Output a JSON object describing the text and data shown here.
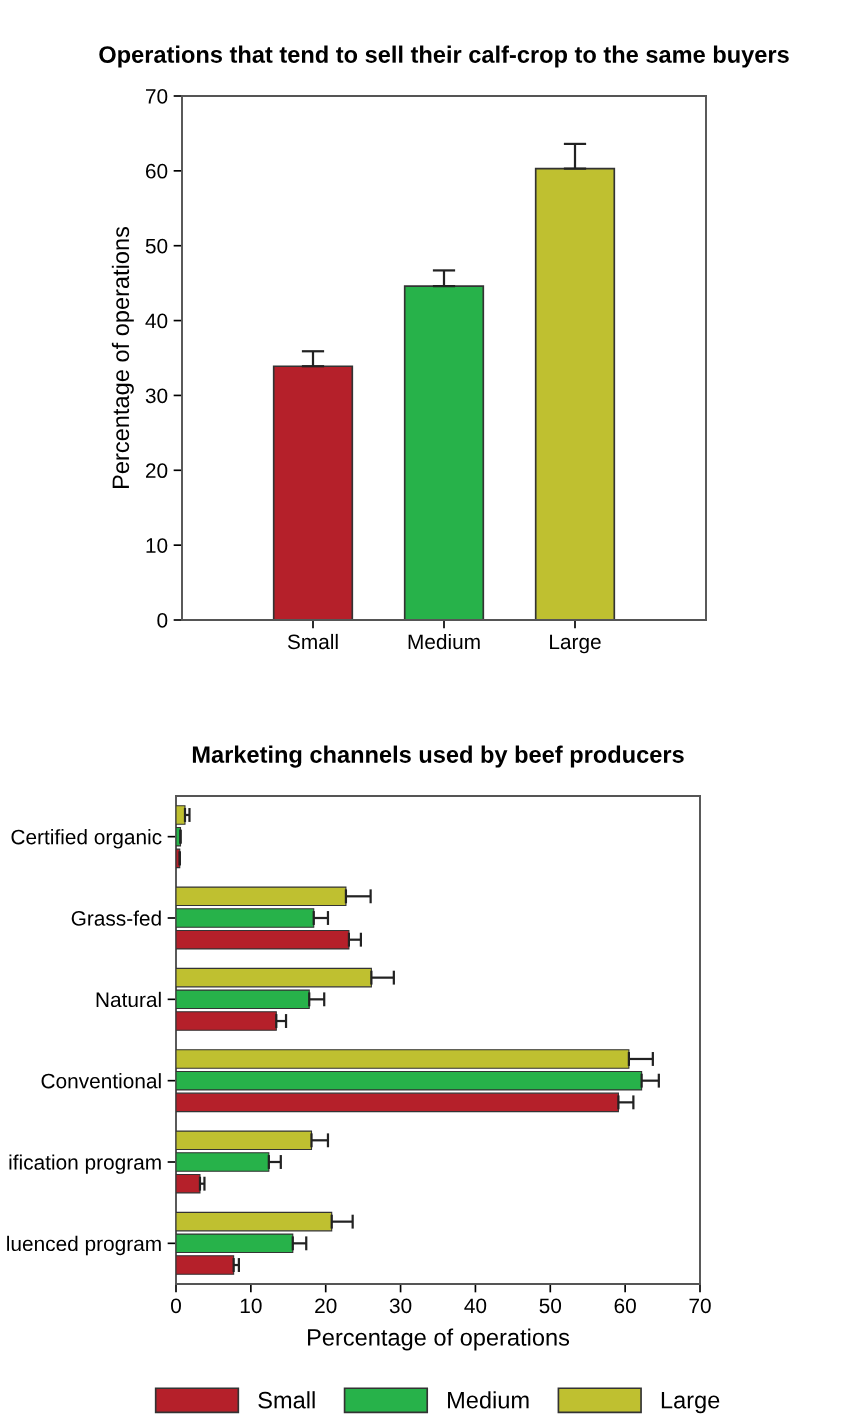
{
  "chart_data": [
    {
      "type": "bar",
      "title": "Operations that tend to sell their calf-crop to the same buyers",
      "ylabel": "Percentage of operations",
      "categories": [
        "Small",
        "Medium",
        "Large"
      ],
      "values": [
        33.9,
        44.6,
        60.3
      ],
      "colors": [
        "#b5202a",
        "#27b24a",
        "#bfc030"
      ],
      "errors": [
        [
          33.9,
          35.9
        ],
        [
          44.6,
          46.7
        ],
        [
          60.3,
          63.6
        ]
      ],
      "ylim": [
        0,
        70
      ],
      "yticks": [
        0,
        10,
        20,
        30,
        40,
        50,
        60,
        70
      ],
      "grid": false,
      "legend": false
    },
    {
      "type": "bar",
      "orientation": "horizontal",
      "title": "Marketing channels used by beef producers",
      "xlabel": "Percentage of operations",
      "categories": [
        "Certified organic",
        "Grass-fed",
        "Natural",
        "Conventional",
        "ification program",
        "luenced program"
      ],
      "xlim": [
        0,
        70
      ],
      "xticks": [
        0,
        10,
        20,
        30,
        40,
        50,
        60,
        70
      ],
      "grid": false,
      "legend": "bottom",
      "series": [
        {
          "name": "Small",
          "color": "#b5202a",
          "values": [
            0.5,
            23.1,
            13.4,
            59.1,
            3.2,
            7.7
          ],
          "errors": [
            null,
            [
              23.1,
              24.7
            ],
            [
              13.4,
              14.7
            ],
            [
              59.1,
              61.1
            ],
            [
              3.2,
              3.8
            ],
            [
              7.7,
              8.4
            ]
          ]
        },
        {
          "name": "Medium",
          "color": "#27b24a",
          "values": [
            0.6,
            18.4,
            17.8,
            62.2,
            12.4,
            15.6
          ],
          "errors": [
            null,
            [
              18.4,
              20.3
            ],
            [
              17.8,
              19.8
            ],
            [
              62.2,
              64.5
            ],
            [
              12.4,
              14.0
            ],
            [
              15.6,
              17.4
            ]
          ]
        },
        {
          "name": "Large",
          "color": "#bfc030",
          "values": [
            1.2,
            22.7,
            26.1,
            60.5,
            18.1,
            20.8
          ],
          "errors": [
            [
              1.2,
              1.8
            ],
            [
              22.7,
              26.0
            ],
            [
              26.1,
              29.1
            ],
            [
              60.5,
              63.7
            ],
            [
              18.1,
              20.3
            ],
            [
              20.8,
              23.6
            ]
          ]
        }
      ]
    }
  ]
}
